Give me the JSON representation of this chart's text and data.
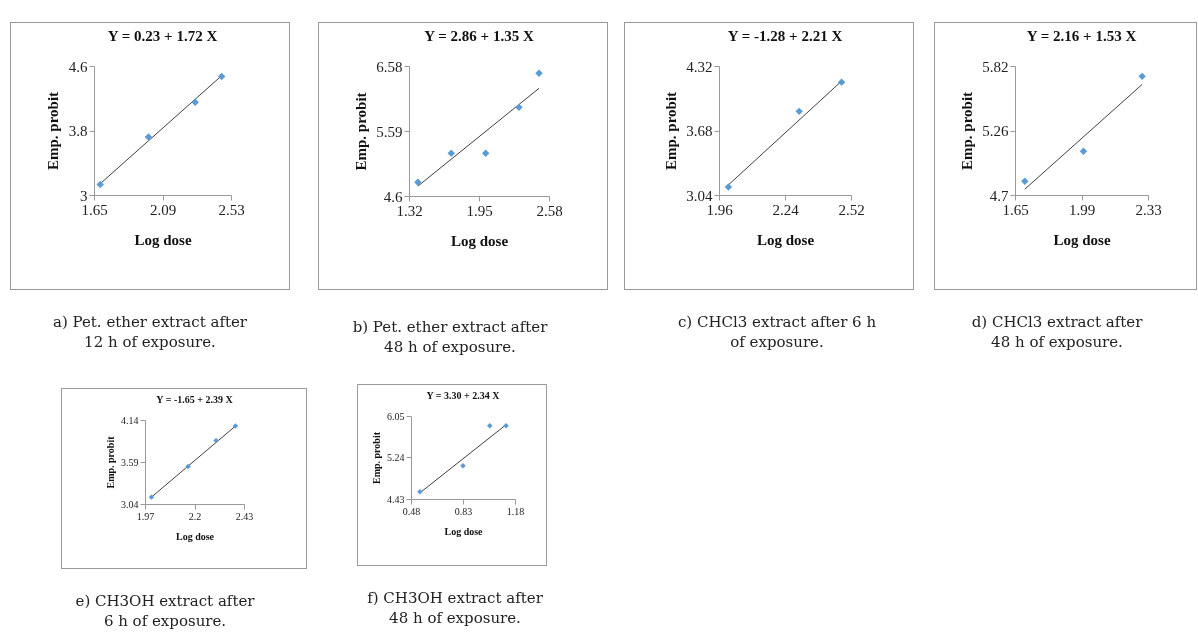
{
  "chart_data": [
    {
      "type": "scatter",
      "title": "Y = 0.23 + 1.72 X",
      "xlabel": "Log dose",
      "ylabel": "Emp. probit",
      "xlim": [
        1.65,
        2.53
      ],
      "xticks": [
        1.65,
        2.09,
        2.53
      ],
      "ylim": [
        3,
        4.6
      ],
      "yticks": [
        3,
        3.8,
        4.6
      ],
      "annotations": [
        "a) Pet. ether extract after 12 h of exposure."
      ],
      "series": [
        {
          "type": "scatter",
          "marker": "diamond",
          "color": "#5b9bd5",
          "x": [
            1.69,
            2.0,
            2.3,
            2.47
          ],
          "values": [
            3.13,
            3.72,
            4.15,
            4.47
          ]
        },
        {
          "type": "line",
          "marker": "none",
          "color": "#404040",
          "x": [
            1.69,
            2.47
          ],
          "values": [
            3.14,
            4.48
          ]
        }
      ]
    },
    {
      "type": "scatter",
      "title": "Y = 2.86 + 1.35 X",
      "xlabel": "Log dose",
      "ylabel": "Emp. probit",
      "xlim": [
        1.32,
        2.58
      ],
      "xticks": [
        1.32,
        1.95,
        2.58
      ],
      "ylim": [
        4.6,
        6.58
      ],
      "yticks": [
        4.6,
        5.59,
        6.58
      ],
      "annotations": [
        "b) Pet. ether extract after 48 h of exposure."
      ],
      "series": [
        {
          "type": "scatter",
          "marker": "diamond",
          "color": "#5b9bd5",
          "x": [
            1.4,
            1.7,
            2.01,
            2.31,
            2.49
          ],
          "values": [
            4.81,
            5.25,
            5.25,
            5.95,
            6.47
          ]
        },
        {
          "type": "line",
          "marker": "none",
          "color": "#404040",
          "x": [
            1.4,
            2.49
          ],
          "values": [
            4.75,
            6.24
          ]
        }
      ]
    },
    {
      "type": "scatter",
      "title": "Y = -1.28 + 2.21 X",
      "xlabel": "Log dose",
      "ylabel": "Emp. probit",
      "xlim": [
        1.96,
        2.52
      ],
      "xticks": [
        1.96,
        2.24,
        2.52
      ],
      "ylim": [
        3.04,
        4.32
      ],
      "yticks": [
        3.04,
        3.68,
        4.32
      ],
      "annotations": [
        "c) CHCl3 extract after 6 h of exposure."
      ],
      "series": [
        {
          "type": "scatter",
          "marker": "diamond",
          "color": "#5b9bd5",
          "x": [
            2.0,
            2.3,
            2.48
          ],
          "values": [
            3.12,
            3.87,
            4.16
          ]
        },
        {
          "type": "line",
          "marker": "none",
          "color": "#404040",
          "x": [
            2.0,
            2.48
          ],
          "values": [
            3.14,
            4.17
          ]
        }
      ]
    },
    {
      "type": "scatter",
      "title": "Y = 2.16  + 1.53 X",
      "xlabel": "Log dose",
      "ylabel": "Emp. probit",
      "xlim": [
        1.65,
        2.33
      ],
      "xticks": [
        1.65,
        1.99,
        2.33
      ],
      "ylim": [
        4.7,
        5.82
      ],
      "yticks": [
        4.7,
        5.26,
        5.82
      ],
      "annotations": [
        "d) CHCl3 extract after 48 h of exposure."
      ],
      "series": [
        {
          "type": "scatter",
          "marker": "diamond",
          "color": "#5b9bd5",
          "x": [
            1.7,
            2.0,
            2.3
          ],
          "values": [
            4.82,
            5.08,
            5.73
          ]
        },
        {
          "type": "line",
          "marker": "none",
          "color": "#404040",
          "x": [
            1.7,
            2.3
          ],
          "values": [
            4.75,
            5.66
          ]
        }
      ]
    },
    {
      "type": "scatter",
      "title": "Y = -1.65 + 2.39 X",
      "xlabel": "Log dose",
      "ylabel": "Emp. probit",
      "xlim": [
        1.97,
        2.43
      ],
      "xticks": [
        1.97,
        2.2,
        2.43
      ],
      "ylim": [
        3.04,
        4.14
      ],
      "yticks": [
        3.04,
        3.59,
        4.14
      ],
      "annotations": [
        "e) CH3OH extract after 6 h of exposure."
      ],
      "series": [
        {
          "type": "scatter",
          "marker": "diamond",
          "color": "#5b9bd5",
          "x": [
            2.0,
            2.17,
            2.3,
            2.39
          ],
          "values": [
            3.13,
            3.53,
            3.87,
            4.06
          ]
        },
        {
          "type": "line",
          "marker": "none",
          "color": "#404040",
          "x": [
            2.0,
            2.39
          ],
          "values": [
            3.13,
            4.06
          ]
        }
      ]
    },
    {
      "type": "scatter",
      "title": "Y = 3.30 + 2.34 X",
      "xlabel": "Log dose",
      "ylabel": "Emp. probit",
      "xlim": [
        0.48,
        1.18
      ],
      "xticks": [
        0.48,
        0.83,
        1.18
      ],
      "ylim": [
        4.43,
        6.05
      ],
      "yticks": [
        4.43,
        5.24,
        6.05
      ],
      "annotations": [
        "f) CH3OH extract after 48 h of exposure."
      ],
      "series": [
        {
          "type": "scatter",
          "marker": "diamond",
          "color": "#5b9bd5",
          "x": [
            0.54,
            0.83,
            1.01,
            1.12
          ],
          "values": [
            4.57,
            5.08,
            5.86,
            5.86
          ]
        },
        {
          "type": "line",
          "marker": "none",
          "color": "#404040",
          "x": [
            0.54,
            1.12
          ],
          "values": [
            4.55,
            5.88
          ]
        }
      ]
    }
  ]
}
